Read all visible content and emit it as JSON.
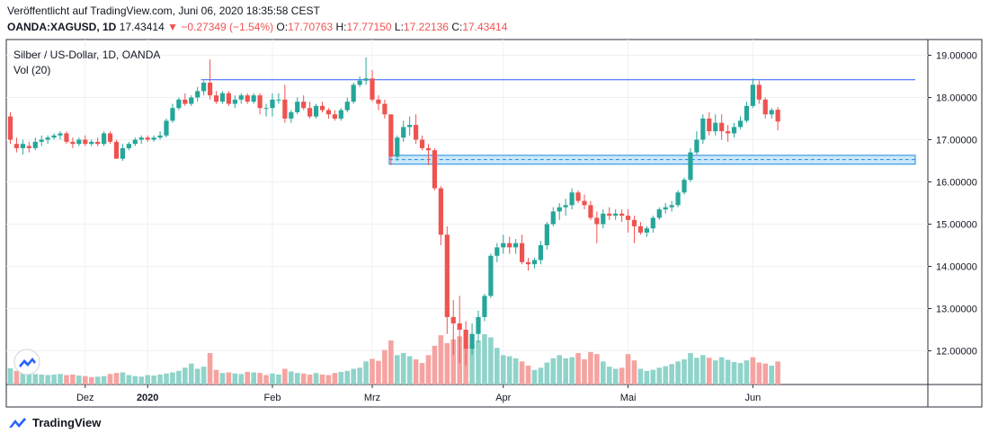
{
  "header": {
    "published": "Veröffentlicht auf TradingView.com, Juni 06, 2020 18:35:58 CEST",
    "symbol": "OANDA:XAGUSD, 1D",
    "last": "17.43414",
    "change_arrow": "▼",
    "change": "−0.27349 (−1.54%)",
    "o_label": "O:",
    "o_value": "17.70763",
    "h_label": "H:",
    "h_value": "17.77150",
    "l_label": "L:",
    "l_value": "17.22136",
    "c_label": "C:",
    "c_value": "17.43414"
  },
  "legend": {
    "series_title": "Silber / US-Dollar, 1D, OANDA",
    "volume_title": "Vol (20)"
  },
  "footer": {
    "brand": "TradingView"
  },
  "colors": {
    "up": "#26a69a",
    "down": "#ef5350",
    "up_volume": "#8fd3c9",
    "down_volume": "#f5a3a1",
    "level_line": "#2962ff",
    "zone_fill": "#bfe3f7",
    "zone_border": "#1e88e5"
  },
  "chart_data": {
    "type": "candlestick",
    "instrument": "Silber / US-Dollar",
    "interval": "1D",
    "ylim": [
      11.3,
      19.3
    ],
    "y_ticks": [
      "19.00000",
      "18.00000",
      "17.00000",
      "16.00000",
      "15.00000",
      "14.00000",
      "13.00000",
      "12.00000"
    ],
    "x_labels": [
      "Dez",
      "2020",
      "Feb",
      "Mrz",
      "Apr",
      "Mai",
      "Jun"
    ],
    "x_label_index": [
      12,
      22,
      42,
      58,
      79,
      99,
      119
    ],
    "grid": true,
    "horizontal_line": 18.42,
    "zone": {
      "top": 16.63,
      "bottom": 16.42,
      "mid": 16.53
    },
    "candles": [
      [
        17.55,
        17.65,
        16.9,
        17.0
      ],
      [
        16.9,
        17.05,
        16.7,
        16.8
      ],
      [
        16.8,
        17.0,
        16.65,
        16.9
      ],
      [
        16.85,
        16.95,
        16.7,
        16.8
      ],
      [
        16.8,
        17.05,
        16.75,
        16.95
      ],
      [
        16.95,
        17.1,
        16.85,
        17.0
      ],
      [
        17.0,
        17.1,
        16.9,
        17.05
      ],
      [
        17.05,
        17.15,
        17.0,
        17.1
      ],
      [
        17.1,
        17.2,
        17.0,
        17.15
      ],
      [
        17.15,
        17.2,
        16.9,
        16.95
      ],
      [
        16.95,
        17.05,
        16.8,
        16.9
      ],
      [
        16.9,
        17.05,
        16.85,
        17.0
      ],
      [
        17.0,
        17.1,
        16.85,
        16.9
      ],
      [
        16.9,
        17.0,
        16.85,
        16.95
      ],
      [
        16.95,
        17.05,
        16.85,
        16.9
      ],
      [
        16.9,
        17.2,
        16.85,
        17.15
      ],
      [
        17.15,
        17.2,
        16.9,
        16.95
      ],
      [
        16.95,
        17.0,
        16.55,
        16.55
      ],
      [
        16.55,
        16.9,
        16.5,
        16.8
      ],
      [
        16.8,
        16.95,
        16.75,
        16.9
      ],
      [
        16.9,
        17.05,
        16.85,
        17.0
      ],
      [
        17.0,
        17.1,
        16.9,
        17.05
      ],
      [
        17.05,
        17.1,
        16.95,
        17.0
      ],
      [
        17.0,
        17.1,
        16.95,
        17.05
      ],
      [
        17.05,
        17.2,
        17.0,
        17.1
      ],
      [
        17.1,
        17.5,
        17.05,
        17.45
      ],
      [
        17.45,
        17.85,
        17.4,
        17.75
      ],
      [
        17.75,
        18.0,
        17.7,
        17.95
      ],
      [
        17.95,
        18.1,
        17.8,
        17.85
      ],
      [
        17.85,
        18.05,
        17.8,
        18.0
      ],
      [
        18.0,
        18.25,
        17.9,
        18.15
      ],
      [
        18.15,
        18.4,
        18.05,
        18.35
      ],
      [
        18.35,
        18.9,
        17.95,
        18.05
      ],
      [
        18.05,
        18.15,
        17.85,
        17.9
      ],
      [
        17.9,
        18.15,
        17.85,
        18.1
      ],
      [
        18.1,
        18.15,
        17.8,
        17.85
      ],
      [
        17.85,
        18.05,
        17.75,
        17.95
      ],
      [
        17.95,
        18.1,
        17.85,
        18.05
      ],
      [
        18.05,
        18.1,
        17.85,
        17.9
      ],
      [
        17.9,
        18.1,
        17.85,
        18.05
      ],
      [
        18.05,
        18.1,
        17.6,
        17.75
      ],
      [
        17.75,
        17.85,
        17.55,
        17.75
      ],
      [
        17.75,
        18.1,
        17.55,
        17.95
      ],
      [
        17.95,
        18.1,
        17.85,
        17.95
      ],
      [
        17.95,
        18.3,
        17.4,
        17.5
      ],
      [
        17.5,
        17.7,
        17.4,
        17.65
      ],
      [
        17.65,
        18.0,
        17.6,
        17.9
      ],
      [
        17.9,
        18.05,
        17.7,
        17.75
      ],
      [
        17.75,
        17.9,
        17.5,
        17.55
      ],
      [
        17.55,
        17.85,
        17.5,
        17.8
      ],
      [
        17.8,
        17.9,
        17.65,
        17.7
      ],
      [
        17.7,
        17.75,
        17.5,
        17.6
      ],
      [
        17.6,
        17.7,
        17.45,
        17.5
      ],
      [
        17.5,
        17.75,
        17.45,
        17.7
      ],
      [
        17.7,
        18.0,
        17.65,
        17.9
      ],
      [
        17.9,
        18.35,
        17.85,
        18.3
      ],
      [
        18.3,
        18.5,
        18.25,
        18.4
      ],
      [
        18.4,
        18.95,
        18.3,
        18.45
      ],
      [
        18.45,
        18.65,
        17.9,
        17.95
      ],
      [
        17.95,
        18.05,
        17.7,
        17.85
      ],
      [
        17.85,
        17.95,
        17.5,
        17.6
      ],
      [
        17.6,
        17.6,
        16.4,
        16.6
      ],
      [
        16.6,
        17.1,
        16.5,
        17.05
      ],
      [
        17.05,
        17.45,
        16.95,
        17.3
      ],
      [
        17.3,
        17.55,
        17.1,
        17.35
      ],
      [
        17.35,
        17.6,
        16.9,
        17.0
      ],
      [
        17.0,
        17.1,
        16.75,
        16.8
      ],
      [
        16.8,
        16.9,
        16.4,
        16.75
      ],
      [
        16.75,
        16.8,
        15.8,
        15.85
      ],
      [
        15.85,
        15.9,
        14.5,
        14.75
      ],
      [
        14.75,
        14.95,
        12.4,
        12.8
      ],
      [
        12.8,
        13.2,
        11.9,
        12.65
      ],
      [
        12.65,
        13.3,
        11.7,
        12.5
      ],
      [
        12.5,
        12.7,
        11.65,
        12.05
      ],
      [
        12.05,
        12.65,
        11.9,
        12.4
      ],
      [
        12.4,
        12.95,
        12.2,
        12.8
      ],
      [
        12.8,
        13.35,
        12.7,
        13.3
      ],
      [
        13.3,
        14.3,
        13.25,
        14.25
      ],
      [
        14.25,
        14.55,
        14.1,
        14.45
      ],
      [
        14.45,
        14.75,
        14.3,
        14.55
      ],
      [
        14.55,
        14.7,
        14.3,
        14.45
      ],
      [
        14.45,
        14.65,
        14.3,
        14.55
      ],
      [
        14.55,
        14.75,
        14.05,
        14.1
      ],
      [
        14.1,
        14.2,
        13.9,
        14.05
      ],
      [
        14.05,
        14.2,
        13.95,
        14.15
      ],
      [
        14.15,
        14.6,
        14.05,
        14.5
      ],
      [
        14.5,
        15.05,
        14.4,
        15.0
      ],
      [
        15.0,
        15.4,
        14.95,
        15.3
      ],
      [
        15.3,
        15.5,
        15.1,
        15.4
      ],
      [
        15.4,
        15.6,
        15.2,
        15.45
      ],
      [
        15.45,
        15.85,
        15.35,
        15.75
      ],
      [
        15.75,
        15.8,
        15.5,
        15.55
      ],
      [
        15.55,
        15.7,
        15.35,
        15.45
      ],
      [
        15.45,
        15.55,
        15.1,
        15.15
      ],
      [
        15.15,
        15.3,
        14.55,
        15.0
      ],
      [
        15.0,
        15.35,
        14.9,
        15.25
      ],
      [
        15.25,
        15.4,
        15.1,
        15.2
      ],
      [
        15.2,
        15.35,
        15.1,
        15.25
      ],
      [
        15.25,
        15.35,
        15.05,
        15.2
      ],
      [
        15.2,
        15.35,
        14.8,
        15.1
      ],
      [
        15.1,
        15.2,
        14.55,
        14.95
      ],
      [
        14.95,
        15.05,
        14.75,
        14.8
      ],
      [
        14.8,
        14.95,
        14.7,
        14.9
      ],
      [
        14.9,
        15.2,
        14.8,
        15.15
      ],
      [
        15.15,
        15.4,
        15.1,
        15.35
      ],
      [
        15.35,
        15.5,
        15.25,
        15.4
      ],
      [
        15.4,
        15.55,
        15.3,
        15.45
      ],
      [
        15.45,
        15.8,
        15.4,
        15.75
      ],
      [
        15.75,
        16.1,
        15.7,
        16.05
      ],
      [
        16.05,
        16.8,
        16.0,
        16.7
      ],
      [
        16.7,
        17.2,
        16.65,
        17.0
      ],
      [
        17.0,
        17.6,
        16.9,
        17.5
      ],
      [
        17.5,
        17.65,
        17.1,
        17.2
      ],
      [
        17.2,
        17.6,
        17.1,
        17.4
      ],
      [
        17.4,
        17.6,
        17.0,
        17.2
      ],
      [
        17.2,
        17.35,
        16.95,
        17.15
      ],
      [
        17.15,
        17.4,
        17.05,
        17.3
      ],
      [
        17.3,
        17.55,
        17.25,
        17.45
      ],
      [
        17.45,
        17.9,
        17.4,
        17.8
      ],
      [
        17.8,
        18.45,
        17.75,
        18.3
      ],
      [
        18.3,
        18.4,
        17.85,
        17.95
      ],
      [
        17.95,
        18.0,
        17.5,
        17.6
      ],
      [
        17.6,
        17.75,
        17.5,
        17.7
      ],
      [
        17.71,
        17.77,
        17.22,
        17.43
      ]
    ],
    "volumes": [
      [
        155,
        "up"
      ],
      [
        130,
        "down"
      ],
      [
        125,
        "up"
      ],
      [
        110,
        "up"
      ],
      [
        100,
        "up"
      ],
      [
        95,
        "up"
      ],
      [
        90,
        "up"
      ],
      [
        95,
        "up"
      ],
      [
        100,
        "up"
      ],
      [
        90,
        "down"
      ],
      [
        95,
        "down"
      ],
      [
        85,
        "up"
      ],
      [
        80,
        "down"
      ],
      [
        70,
        "down"
      ],
      [
        75,
        "up"
      ],
      [
        80,
        "up"
      ],
      [
        100,
        "down"
      ],
      [
        110,
        "down"
      ],
      [
        115,
        "up"
      ],
      [
        90,
        "up"
      ],
      [
        80,
        "up"
      ],
      [
        75,
        "up"
      ],
      [
        90,
        "up"
      ],
      [
        85,
        "up"
      ],
      [
        95,
        "up"
      ],
      [
        105,
        "up"
      ],
      [
        115,
        "up"
      ],
      [
        130,
        "up"
      ],
      [
        160,
        "up"
      ],
      [
        200,
        "up"
      ],
      [
        150,
        "up"
      ],
      [
        170,
        "up"
      ],
      [
        300,
        "down"
      ],
      [
        140,
        "down"
      ],
      [
        110,
        "up"
      ],
      [
        115,
        "down"
      ],
      [
        105,
        "up"
      ],
      [
        100,
        "up"
      ],
      [
        120,
        "down"
      ],
      [
        115,
        "up"
      ],
      [
        110,
        "down"
      ],
      [
        90,
        "down"
      ],
      [
        105,
        "up"
      ],
      [
        95,
        "up"
      ],
      [
        150,
        "down"
      ],
      [
        125,
        "up"
      ],
      [
        110,
        "up"
      ],
      [
        105,
        "down"
      ],
      [
        95,
        "down"
      ],
      [
        110,
        "up"
      ],
      [
        95,
        "down"
      ],
      [
        90,
        "down"
      ],
      [
        110,
        "down"
      ],
      [
        120,
        "up"
      ],
      [
        130,
        "up"
      ],
      [
        150,
        "up"
      ],
      [
        160,
        "up"
      ],
      [
        220,
        "up"
      ],
      [
        245,
        "down"
      ],
      [
        225,
        "down"
      ],
      [
        330,
        "down"
      ],
      [
        420,
        "down"
      ],
      [
        280,
        "up"
      ],
      [
        300,
        "up"
      ],
      [
        270,
        "up"
      ],
      [
        240,
        "down"
      ],
      [
        205,
        "down"
      ],
      [
        280,
        "down"
      ],
      [
        370,
        "down"
      ],
      [
        470,
        "down"
      ],
      [
        395,
        "down"
      ],
      [
        430,
        "down"
      ],
      [
        460,
        "down"
      ],
      [
        360,
        "down"
      ],
      [
        380,
        "up"
      ],
      [
        420,
        "up"
      ],
      [
        480,
        "up"
      ],
      [
        450,
        "up"
      ],
      [
        350,
        "up"
      ],
      [
        280,
        "up"
      ],
      [
        270,
        "up"
      ],
      [
        250,
        "up"
      ],
      [
        220,
        "down"
      ],
      [
        180,
        "down"
      ],
      [
        140,
        "up"
      ],
      [
        160,
        "up"
      ],
      [
        210,
        "up"
      ],
      [
        250,
        "up"
      ],
      [
        280,
        "up"
      ],
      [
        250,
        "up"
      ],
      [
        260,
        "up"
      ],
      [
        300,
        "down"
      ],
      [
        240,
        "down"
      ],
      [
        310,
        "down"
      ],
      [
        290,
        "down"
      ],
      [
        220,
        "up"
      ],
      [
        170,
        "up"
      ],
      [
        150,
        "up"
      ],
      [
        160,
        "down"
      ],
      [
        290,
        "down"
      ],
      [
        230,
        "down"
      ],
      [
        150,
        "up"
      ],
      [
        130,
        "up"
      ],
      [
        140,
        "up"
      ],
      [
        160,
        "up"
      ],
      [
        175,
        "up"
      ],
      [
        195,
        "up"
      ],
      [
        220,
        "up"
      ],
      [
        240,
        "up"
      ],
      [
        300,
        "up"
      ],
      [
        255,
        "up"
      ],
      [
        280,
        "up"
      ],
      [
        255,
        "down"
      ],
      [
        230,
        "up"
      ],
      [
        260,
        "up"
      ],
      [
        235,
        "up"
      ],
      [
        215,
        "up"
      ],
      [
        205,
        "up"
      ],
      [
        230,
        "up"
      ],
      [
        260,
        "down"
      ],
      [
        210,
        "down"
      ],
      [
        200,
        "down"
      ],
      [
        180,
        "up"
      ],
      [
        220,
        "down"
      ]
    ]
  }
}
